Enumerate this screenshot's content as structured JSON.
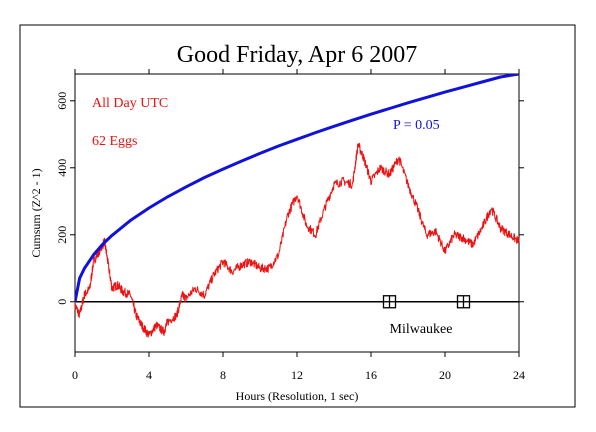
{
  "chart_data": {
    "type": "line",
    "title": "Good Friday, Apr 6 2007",
    "xlabel": "Hours (Resolution, 1 sec)",
    "ylabel": "Cumsum (Z^2 - 1)",
    "xlim": [
      0,
      24
    ],
    "ylim": [
      -150,
      680
    ],
    "x_ticks": [
      0,
      4,
      8,
      12,
      16,
      20,
      24
    ],
    "y_ticks": [
      0,
      200,
      400,
      600
    ],
    "annotations": {
      "period": "All Day UTC",
      "eggs": "62 Eggs",
      "probability": "P = 0.05",
      "event_label": "Milwaukee"
    },
    "event_markers": [
      17,
      21
    ],
    "series": [
      {
        "color": "#ee1111",
        "x": [
          0,
          0.25,
          0.5,
          0.8,
          1.0,
          1.3,
          1.6,
          1.8,
          2.0,
          2.3,
          2.6,
          3.0,
          3.3,
          3.6,
          4.0,
          4.4,
          4.8,
          5.0,
          5.5,
          5.8,
          6.0,
          6.5,
          7.0,
          7.5,
          8.0,
          8.5,
          9.0,
          9.5,
          10.0,
          10.5,
          11.0,
          11.5,
          12.0,
          12.5,
          13.0,
          13.5,
          14.0,
          14.5,
          15.0,
          15.3,
          15.6,
          16.0,
          16.5,
          17.0,
          17.5,
          18.0,
          18.5,
          19.0,
          19.5,
          20.0,
          20.5,
          21.0,
          21.5,
          22.0,
          22.5,
          23.0,
          23.5,
          24.0
        ],
        "y": [
          -10,
          -40,
          20,
          40,
          120,
          150,
          180,
          110,
          40,
          50,
          30,
          20,
          -40,
          -70,
          -100,
          -70,
          -90,
          -60,
          -40,
          20,
          10,
          40,
          20,
          80,
          120,
          90,
          110,
          120,
          100,
          100,
          140,
          260,
          320,
          230,
          200,
          280,
          350,
          360,
          350,
          470,
          430,
          360,
          400,
          380,
          430,
          350,
          280,
          200,
          210,
          150,
          200,
          190,
          170,
          220,
          280,
          220,
          200,
          180
        ]
      },
      {
        "color": "#1111dd",
        "x": [
          0,
          0.25,
          0.5,
          1,
          1.5,
          2,
          3,
          4,
          5,
          6,
          7,
          8,
          9,
          10,
          11,
          12,
          13,
          14,
          15,
          16,
          17,
          18,
          19,
          20,
          21,
          22,
          23,
          24
        ],
        "y": [
          0,
          70,
          99,
          140,
          172,
          198,
          243,
          280,
          313,
          343,
          371,
          396,
          420,
          443,
          465,
          485,
          505,
          524,
          542,
          560,
          577,
          594,
          610,
          626,
          641,
          656,
          671,
          686
        ]
      }
    ]
  }
}
